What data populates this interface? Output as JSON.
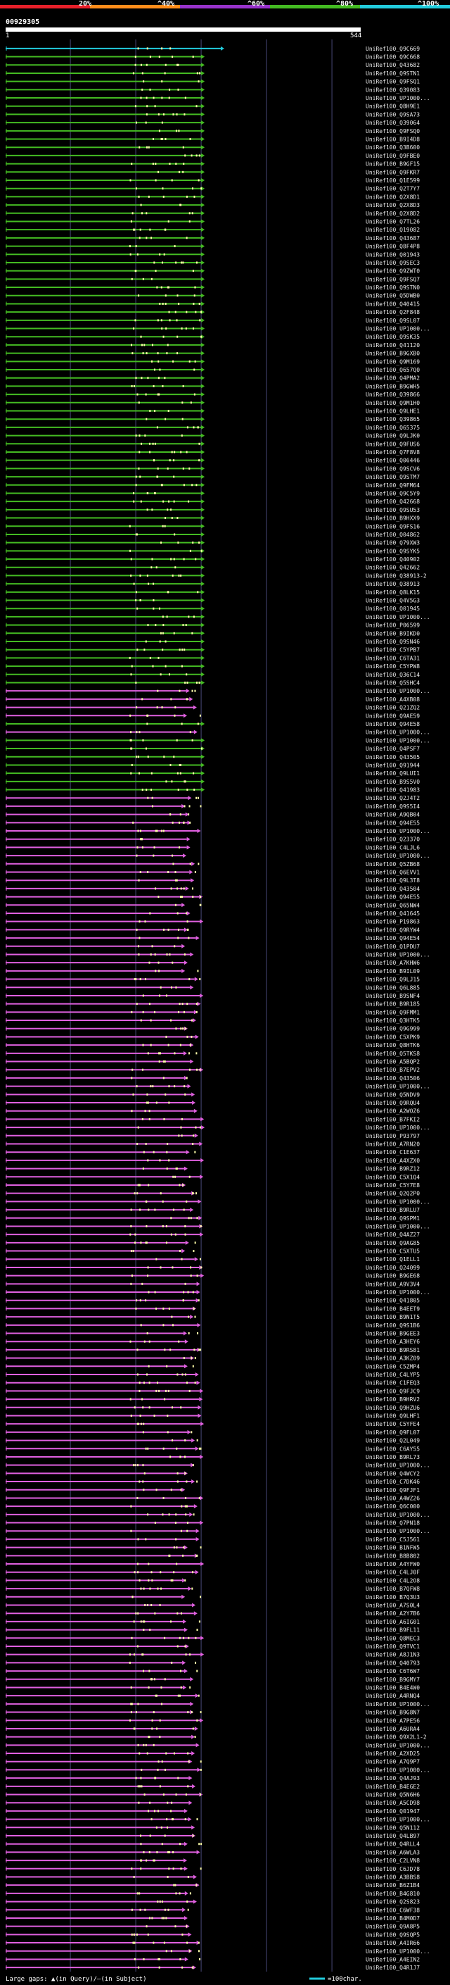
{
  "colors": {
    "background": "#000000",
    "red": "#e8202a",
    "orange": "#ff8c1a",
    "purple": "#9933cc",
    "green": "#44bb22",
    "cyan": "#22ccdd",
    "magenta": "#e060e0",
    "lime": "#22cc22",
    "gap_marker": "#ffffaa",
    "grid": "#4a4a7a"
  },
  "header": {
    "scale_labels": [
      "20%",
      "^40%",
      "^60%",
      "^80%",
      "^100%"
    ],
    "query_id": "00929305",
    "range_start": "1",
    "range_end": "544"
  },
  "footer": {
    "gaps_text": "Large gaps: ▲(in Query)/—(in Subject)",
    "scale_text": "=100char."
  },
  "chart_data": {
    "type": "alignment-hits",
    "query_length": 544,
    "x_range": [
      1,
      544
    ],
    "hits": [
      {
        "label": "UniRef100_Q9C669",
        "color": "cyan"
      },
      {
        "label": "UniRef100_Q9C668",
        "color": "green"
      },
      {
        "label": "UniRef100_Q43682",
        "color": "green"
      },
      {
        "label": "UniRef100_Q9STN1",
        "color": "green"
      },
      {
        "label": "UniRef100_Q9FSQ1",
        "color": "green"
      },
      {
        "label": "UniRef100_Q39083",
        "color": "green"
      },
      {
        "label": "UniRef100_UP1000...",
        "color": "green"
      },
      {
        "label": "UniRef100_Q8H9E1",
        "color": "green"
      },
      {
        "label": "UniRef100_Q9SA73",
        "color": "green"
      },
      {
        "label": "UniRef100_Q39064",
        "color": "green"
      },
      {
        "label": "UniRef100_Q9FSQ0",
        "color": "green"
      },
      {
        "label": "UniRef100_B9I4D8",
        "color": "green"
      },
      {
        "label": "UniRef100_Q3B600",
        "color": "green"
      },
      {
        "label": "UniRef100_Q9FBE0",
        "color": "green"
      },
      {
        "label": "UniRef100_B9GF15",
        "color": "green"
      },
      {
        "label": "UniRef100_Q9FKR7",
        "color": "green"
      },
      {
        "label": "UniRef100_Q1E599",
        "color": "green"
      },
      {
        "label": "UniRef100_Q2T7Y7",
        "color": "green"
      },
      {
        "label": "UniRef100_Q2X8D1",
        "color": "green"
      },
      {
        "label": "UniRef100_Q2X8D3",
        "color": "green"
      },
      {
        "label": "UniRef100_Q2X8D2",
        "color": "green"
      },
      {
        "label": "UniRef100_Q7TL26",
        "color": "green"
      },
      {
        "label": "UniRef100_Q19082",
        "color": "green"
      },
      {
        "label": "UniRef100_Q43687",
        "color": "green"
      },
      {
        "label": "UniRef100_Q8F4P8",
        "color": "green"
      },
      {
        "label": "UniRef100_Q01943",
        "color": "green"
      },
      {
        "label": "UniRef100_Q9SEC3",
        "color": "green"
      },
      {
        "label": "UniRef100_Q9ZWT0",
        "color": "green"
      },
      {
        "label": "UniRef100_Q9FSQ7",
        "color": "green"
      },
      {
        "label": "UniRef100_Q9STN0",
        "color": "green"
      },
      {
        "label": "UniRef100_Q5DWB0",
        "color": "green"
      },
      {
        "label": "UniRef100_Q40415",
        "color": "green"
      },
      {
        "label": "UniRef100_Q2F848",
        "color": "green"
      },
      {
        "label": "UniRef100_Q9SL07",
        "color": "green"
      },
      {
        "label": "UniRef100_UP1000...",
        "color": "green"
      },
      {
        "label": "UniRef100_Q9SK35",
        "color": "green"
      },
      {
        "label": "UniRef100_Q41120",
        "color": "green"
      },
      {
        "label": "UniRef100_B9GXB0",
        "color": "green"
      },
      {
        "label": "UniRef100_Q9M169",
        "color": "green"
      },
      {
        "label": "UniRef100_Q657Q0",
        "color": "green"
      },
      {
        "label": "UniRef100_Q4PMA2",
        "color": "green"
      },
      {
        "label": "UniRef100_B9GWH5",
        "color": "green"
      },
      {
        "label": "UniRef100_Q39866",
        "color": "green"
      },
      {
        "label": "UniRef100_Q9M1H0",
        "color": "green"
      },
      {
        "label": "UniRef100_Q9LHE1",
        "color": "green"
      },
      {
        "label": "UniRef100_Q39865",
        "color": "green"
      },
      {
        "label": "UniRef100_Q65375",
        "color": "green"
      },
      {
        "label": "UniRef100_Q9LJK0",
        "color": "green"
      },
      {
        "label": "UniRef100_Q9FUS6",
        "color": "green"
      },
      {
        "label": "UniRef100_Q7F8V8",
        "color": "green"
      },
      {
        "label": "UniRef100_Q06446",
        "color": "green"
      },
      {
        "label": "UniRef100_Q9SCV6",
        "color": "green"
      },
      {
        "label": "UniRef100_Q9STM7",
        "color": "green"
      },
      {
        "label": "UniRef100_Q9FM64",
        "color": "green"
      },
      {
        "label": "UniRef100_Q9C5Y9",
        "color": "green"
      },
      {
        "label": "UniRef100_Q42668",
        "color": "green"
      },
      {
        "label": "UniRef100_Q9SU53",
        "color": "green"
      },
      {
        "label": "UniRef100_B9HXX9",
        "color": "green"
      },
      {
        "label": "UniRef100_Q9FS16",
        "color": "green"
      },
      {
        "label": "UniRef100_Q04862",
        "color": "green"
      },
      {
        "label": "UniRef100_Q79XW3",
        "color": "green"
      },
      {
        "label": "UniRef100_Q9SYK5",
        "color": "green"
      },
      {
        "label": "UniRef100_Q40902",
        "color": "green"
      },
      {
        "label": "UniRef100_Q42662",
        "color": "green"
      },
      {
        "label": "UniRef100_Q38913-2",
        "color": "green"
      },
      {
        "label": "UniRef100_Q38913",
        "color": "green"
      },
      {
        "label": "UniRef100_Q8LK15",
        "color": "green"
      },
      {
        "label": "UniRef100_Q4V5G3",
        "color": "green"
      },
      {
        "label": "UniRef100_Q01945",
        "color": "green"
      },
      {
        "label": "UniRef100_UP1000...",
        "color": "green"
      },
      {
        "label": "UniRef100_P06599",
        "color": "green"
      },
      {
        "label": "UniRef100_B9IKD0",
        "color": "green"
      },
      {
        "label": "UniRef100_Q9SN46",
        "color": "green"
      },
      {
        "label": "UniRef100_C5YPB7",
        "color": "green"
      },
      {
        "label": "UniRef100_C6TA31",
        "color": "green"
      },
      {
        "label": "UniRef100_C5YPW8",
        "color": "green"
      },
      {
        "label": "UniRef100_Q36C14",
        "color": "green"
      },
      {
        "label": "UniRef100_Q5SHC4",
        "color": "green"
      },
      {
        "label": "UniRef100_UP1000...",
        "color": "magenta"
      },
      {
        "label": "UniRef100_A4XB08",
        "color": "magenta"
      },
      {
        "label": "UniRef100_Q21ZQ2",
        "color": "magenta"
      },
      {
        "label": "UniRef100_Q9AE59",
        "color": "magenta"
      },
      {
        "label": "UniRef100_Q94E58",
        "color": "green"
      },
      {
        "label": "UniRef100_UP1000...",
        "color": "magenta"
      },
      {
        "label": "UniRef100_UP1000...",
        "color": "green"
      },
      {
        "label": "UniRef100_Q4PSF7",
        "color": "green"
      },
      {
        "label": "UniRef100_Q43505",
        "color": "green"
      },
      {
        "label": "UniRef100_Q91944",
        "color": "green"
      },
      {
        "label": "UniRef100_Q9LUI1",
        "color": "green"
      },
      {
        "label": "UniRef100_B9S5V0",
        "color": "green"
      },
      {
        "label": "UniRef100_Q41983",
        "color": "green"
      },
      {
        "label": "UniRef100_Q2J4T2",
        "color": "magenta"
      },
      {
        "label": "UniRef100_Q9S5I4",
        "color": "magenta"
      },
      {
        "label": "UniRef100_A9QB04",
        "color": "magenta"
      },
      {
        "label": "UniRef100_Q94E55",
        "color": "magenta"
      },
      {
        "label": "UniRef100_UP1000...",
        "color": "magenta"
      },
      {
        "label": "UniRef100_Q23370",
        "color": "magenta"
      },
      {
        "label": "UniRef100_C4LJL6",
        "color": "magenta"
      },
      {
        "label": "UniRef100_UP1000...",
        "color": "magenta"
      },
      {
        "label": "UniRef100_Q5ZB68",
        "color": "magenta"
      },
      {
        "label": "UniRef100_Q6EVV1",
        "color": "magenta"
      },
      {
        "label": "UniRef100_Q9L3T8",
        "color": "magenta"
      },
      {
        "label": "UniRef100_Q43504",
        "color": "magenta"
      },
      {
        "label": "UniRef100_Q94E55",
        "color": "magenta"
      },
      {
        "label": "UniRef100_Q65NW4",
        "color": "magenta"
      },
      {
        "label": "UniRef100_Q41645",
        "color": "magenta"
      },
      {
        "label": "UniRef100_P19863",
        "color": "magenta"
      },
      {
        "label": "UniRef100_Q9RYW4",
        "color": "magenta"
      },
      {
        "label": "UniRef100_Q94E54",
        "color": "magenta"
      },
      {
        "label": "UniRef100_Q1PDU7",
        "color": "magenta"
      },
      {
        "label": "UniRef100_UP1000...",
        "color": "magenta"
      },
      {
        "label": "UniRef100_A7KHW6",
        "color": "magenta"
      },
      {
        "label": "UniRef100_B9IL09",
        "color": "magenta"
      },
      {
        "label": "UniRef100_Q9LJ15",
        "color": "magenta"
      },
      {
        "label": "UniRef100_Q6L885",
        "color": "magenta"
      },
      {
        "label": "UniRef100_B9SNF4",
        "color": "magenta"
      },
      {
        "label": "UniRef100_B9R185",
        "color": "magenta"
      },
      {
        "label": "UniRef100_Q9FMM1",
        "color": "magenta"
      },
      {
        "label": "UniRef100_Q3HTK5",
        "color": "magenta"
      },
      {
        "label": "UniRef100_Q9G999",
        "color": "magenta"
      },
      {
        "label": "UniRef100_C5XPK9",
        "color": "magenta"
      },
      {
        "label": "UniRef100_Q8HTK6",
        "color": "magenta"
      },
      {
        "label": "UniRef100_Q5TKS8",
        "color": "magenta"
      },
      {
        "label": "UniRef100_A5BQP2",
        "color": "magenta"
      },
      {
        "label": "UniRef100_B7EPV2",
        "color": "magenta"
      },
      {
        "label": "UniRef100_Q43506",
        "color": "magenta"
      },
      {
        "label": "UniRef100_UP1000...",
        "color": "magenta"
      },
      {
        "label": "UniRef100_Q5NDV9",
        "color": "magenta"
      },
      {
        "label": "UniRef100_Q9RQU4",
        "color": "magenta"
      },
      {
        "label": "UniRef100_A2WOZ6",
        "color": "magenta"
      },
      {
        "label": "UniRef100_B7FKI2",
        "color": "magenta"
      },
      {
        "label": "UniRef100_UP1000...",
        "color": "magenta"
      },
      {
        "label": "UniRef100_P93797",
        "color": "magenta"
      },
      {
        "label": "UniRef100_A7RN20",
        "color": "magenta"
      },
      {
        "label": "UniRef100_C1E637",
        "color": "magenta"
      },
      {
        "label": "UniRef100_A4XZX0",
        "color": "magenta"
      },
      {
        "label": "UniRef100_B9RZ12",
        "color": "magenta"
      },
      {
        "label": "UniRef100_C5X1Q4",
        "color": "magenta"
      },
      {
        "label": "UniRef100_C5Y7E8",
        "color": "magenta"
      },
      {
        "label": "UniRef100_Q2Q2P0",
        "color": "magenta"
      },
      {
        "label": "UniRef100_UP1000...",
        "color": "magenta"
      },
      {
        "label": "UniRef100_B9RLU7",
        "color": "magenta"
      },
      {
        "label": "UniRef100_Q9SPM1",
        "color": "magenta"
      },
      {
        "label": "UniRef100_UP1000...",
        "color": "magenta"
      },
      {
        "label": "UniRef100_Q4AZ27",
        "color": "magenta"
      },
      {
        "label": "UniRef100_Q9AG85",
        "color": "magenta"
      },
      {
        "label": "UniRef100_C5XTU5",
        "color": "magenta"
      },
      {
        "label": "UniRef100_Q1ELL1",
        "color": "magenta"
      },
      {
        "label": "UniRef100_Q24099",
        "color": "magenta"
      },
      {
        "label": "UniRef100_B9GE68",
        "color": "magenta"
      },
      {
        "label": "UniRef100_A9V3V4",
        "color": "magenta"
      },
      {
        "label": "UniRef100_UP1000...",
        "color": "magenta"
      },
      {
        "label": "UniRef100_Q41805",
        "color": "magenta"
      },
      {
        "label": "UniRef100_B4EET9",
        "color": "magenta"
      },
      {
        "label": "UniRef100_B9N1T5",
        "color": "magenta"
      },
      {
        "label": "UniRef100_Q9S1B6",
        "color": "magenta"
      },
      {
        "label": "UniRef100_B9GEE3",
        "color": "magenta"
      },
      {
        "label": "UniRef100_A3HEY6",
        "color": "magenta"
      },
      {
        "label": "UniRef100_B9RS81",
        "color": "magenta"
      },
      {
        "label": "UniRef100_A3KZ09",
        "color": "magenta"
      },
      {
        "label": "UniRef100_C5ZMP4",
        "color": "magenta"
      },
      {
        "label": "UniRef100_C4LYP5",
        "color": "magenta"
      },
      {
        "label": "UniRef100_C1FEQ3",
        "color": "magenta"
      },
      {
        "label": "UniRef100_Q9FJC9",
        "color": "magenta"
      },
      {
        "label": "UniRef100_B9HRV2",
        "color": "magenta"
      },
      {
        "label": "UniRef100_Q9HZU6",
        "color": "magenta"
      },
      {
        "label": "UniRef100_Q9LHF1",
        "color": "magenta"
      },
      {
        "label": "UniRef100_C5YFE4",
        "color": "magenta"
      },
      {
        "label": "UniRef100_Q9FL07",
        "color": "magenta"
      },
      {
        "label": "UniRef100_Q2L049",
        "color": "magenta"
      },
      {
        "label": "UniRef100_C6AY55",
        "color": "magenta"
      },
      {
        "label": "UniRef100_B9RL73",
        "color": "magenta"
      },
      {
        "label": "UniRef100_UP1000...",
        "color": "magenta"
      },
      {
        "label": "UniRef100_Q4WCY2",
        "color": "magenta"
      },
      {
        "label": "UniRef100_C7DK46",
        "color": "magenta"
      },
      {
        "label": "UniRef100_Q9FJF1",
        "color": "magenta"
      },
      {
        "label": "UniRef100_A4WZ26",
        "color": "magenta"
      },
      {
        "label": "UniRef100_Q6C000",
        "color": "magenta"
      },
      {
        "label": "UniRef100_UP1000...",
        "color": "magenta"
      },
      {
        "label": "UniRef100_Q7PN18",
        "color": "magenta"
      },
      {
        "label": "UniRef100_UP1000...",
        "color": "magenta"
      },
      {
        "label": "UniRef100_C5J561",
        "color": "magenta"
      },
      {
        "label": "UniRef100_B1NFW5",
        "color": "magenta"
      },
      {
        "label": "UniRef100_B8B802",
        "color": "magenta"
      },
      {
        "label": "UniRef100_A4YFW0",
        "color": "magenta"
      },
      {
        "label": "UniRef100_C4LJ0F",
        "color": "magenta"
      },
      {
        "label": "UniRef100_C4L2O8",
        "color": "magenta"
      },
      {
        "label": "UniRef100_B7QFW8",
        "color": "magenta"
      },
      {
        "label": "UniRef100_B7Q3U3",
        "color": "magenta"
      },
      {
        "label": "UniRef100_A7S0L4",
        "color": "magenta"
      },
      {
        "label": "UniRef100_A2Y7B6",
        "color": "magenta"
      },
      {
        "label": "UniRef100_A6IG01",
        "color": "magenta"
      },
      {
        "label": "UniRef100_B9FL11",
        "color": "magenta"
      },
      {
        "label": "UniRef100_Q8MEC3",
        "color": "magenta"
      },
      {
        "label": "UniRef100_Q9TVC1",
        "color": "magenta"
      },
      {
        "label": "UniRef100_A8J1N3",
        "color": "magenta"
      },
      {
        "label": "UniRef100_Q40793",
        "color": "magenta"
      },
      {
        "label": "UniRef100_C6T6W7",
        "color": "magenta"
      },
      {
        "label": "UniRef100_B9GMY7",
        "color": "magenta"
      },
      {
        "label": "UniRef100_B4E4W0",
        "color": "magenta"
      },
      {
        "label": "UniRef100_A4RNQ4",
        "color": "magenta"
      },
      {
        "label": "UniRef100_UP1000...",
        "color": "magenta"
      },
      {
        "label": "UniRef100_B9G8N7",
        "color": "magenta"
      },
      {
        "label": "UniRef100_A7PE56",
        "color": "magenta"
      },
      {
        "label": "UniRef100_A6URA4",
        "color": "magenta"
      },
      {
        "label": "UniRef100_Q9X2L1-2",
        "color": "magenta"
      },
      {
        "label": "UniRef100_UP1000...",
        "color": "magenta"
      },
      {
        "label": "UniRef100_A2XD25",
        "color": "magenta"
      },
      {
        "label": "UniRef100_A7Q9P7",
        "color": "magenta"
      },
      {
        "label": "UniRef100_UP1000...",
        "color": "magenta"
      },
      {
        "label": "UniRef100_Q4AJ93",
        "color": "magenta"
      },
      {
        "label": "UniRef100_B4EGE2",
        "color": "magenta"
      },
      {
        "label": "UniRef100_Q5N6H6",
        "color": "magenta"
      },
      {
        "label": "UniRef100_A5CD98",
        "color": "magenta"
      },
      {
        "label": "UniRef100_Q01947",
        "color": "magenta"
      },
      {
        "label": "UniRef100_UP1000...",
        "color": "magenta"
      },
      {
        "label": "UniRef100_Q5N112",
        "color": "magenta"
      },
      {
        "label": "UniRef100_Q4LB97",
        "color": "magenta"
      },
      {
        "label": "UniRef100_Q4RLL4",
        "color": "magenta"
      },
      {
        "label": "UniRef100_A6WLA3",
        "color": "magenta"
      },
      {
        "label": "UniRef100_C2LVN8",
        "color": "magenta"
      },
      {
        "label": "UniRef100_C6JD78",
        "color": "magenta"
      },
      {
        "label": "UniRef100_A3BBS8",
        "color": "magenta"
      },
      {
        "label": "UniRef100_B6Z1B4",
        "color": "magenta"
      },
      {
        "label": "UniRef100_B4G810",
        "color": "magenta"
      },
      {
        "label": "UniRef100_Q2S823",
        "color": "magenta"
      },
      {
        "label": "UniRef100_C6WF38",
        "color": "magenta"
      },
      {
        "label": "UniRef100_B4M0D7",
        "color": "magenta"
      },
      {
        "label": "UniRef100_Q9A8P5",
        "color": "magenta"
      },
      {
        "label": "UniRef100_Q9SQP5",
        "color": "magenta"
      },
      {
        "label": "UniRef100_A4IR66",
        "color": "magenta"
      },
      {
        "label": "UniRef100_UP1000...",
        "color": "magenta"
      },
      {
        "label": "UniRef100_A4EIN2",
        "color": "magenta"
      },
      {
        "label": "UniRef100_Q4R1J7",
        "color": "magenta"
      }
    ]
  }
}
